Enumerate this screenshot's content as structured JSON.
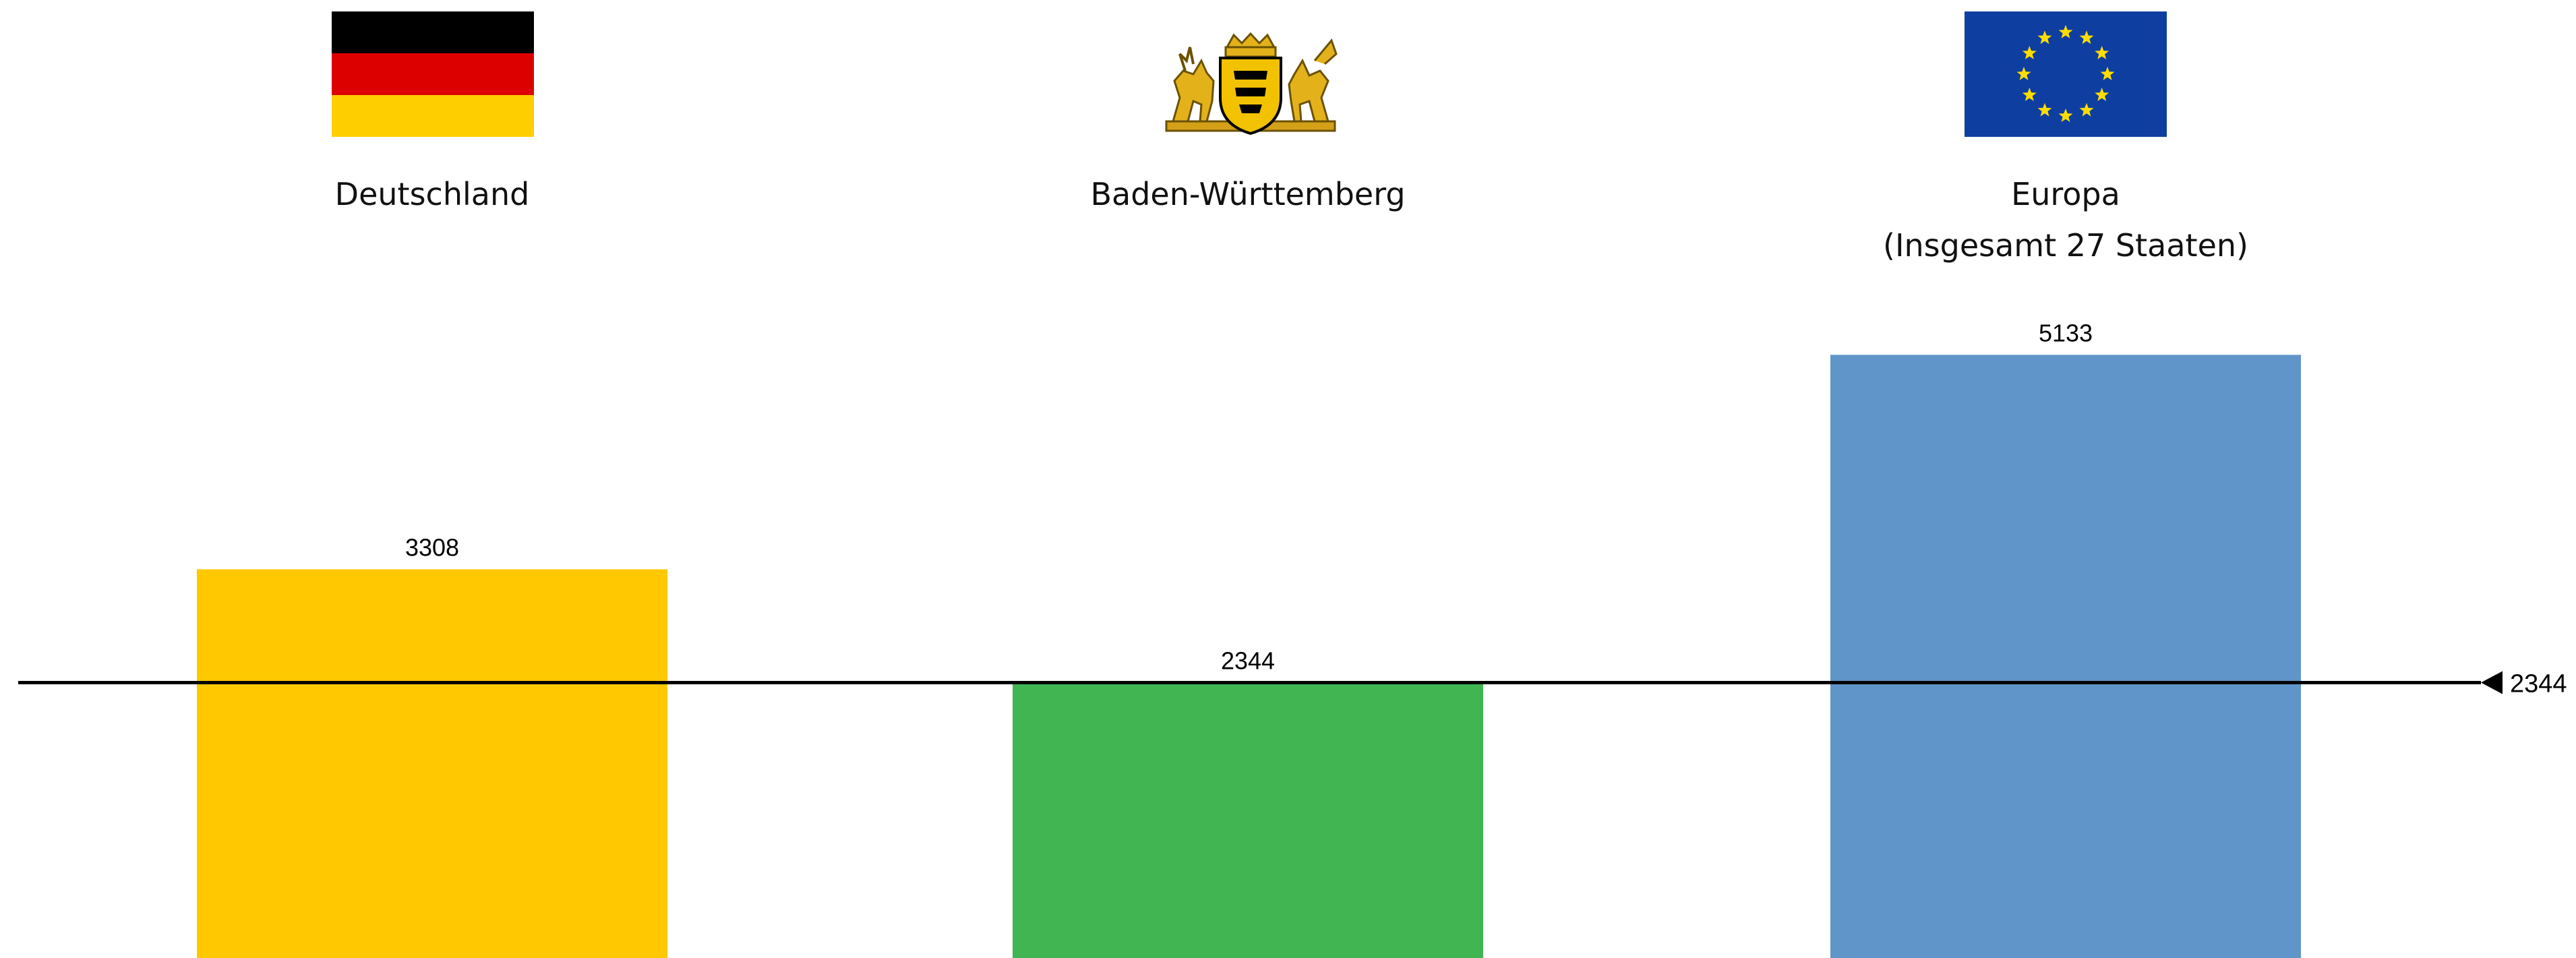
{
  "chart_data": {
    "type": "bar",
    "categories": [
      "Deutschland",
      "Baden-Württemberg",
      "Europa"
    ],
    "subtitles": [
      "",
      "",
      "(Insgesamt 27 Staaten)"
    ],
    "values": [
      3308,
      2344,
      5133
    ],
    "colors": [
      "#FFC800",
      "#42B553",
      "#6095C9"
    ],
    "emblems": [
      "german-flag-icon",
      "baden-wuerttemberg-coat-of-arms-icon",
      "eu-flag-icon"
    ],
    "reference_line": {
      "value": 2344,
      "label": "2344",
      "color": "#000000"
    },
    "grid": false,
    "legend": "none"
  }
}
